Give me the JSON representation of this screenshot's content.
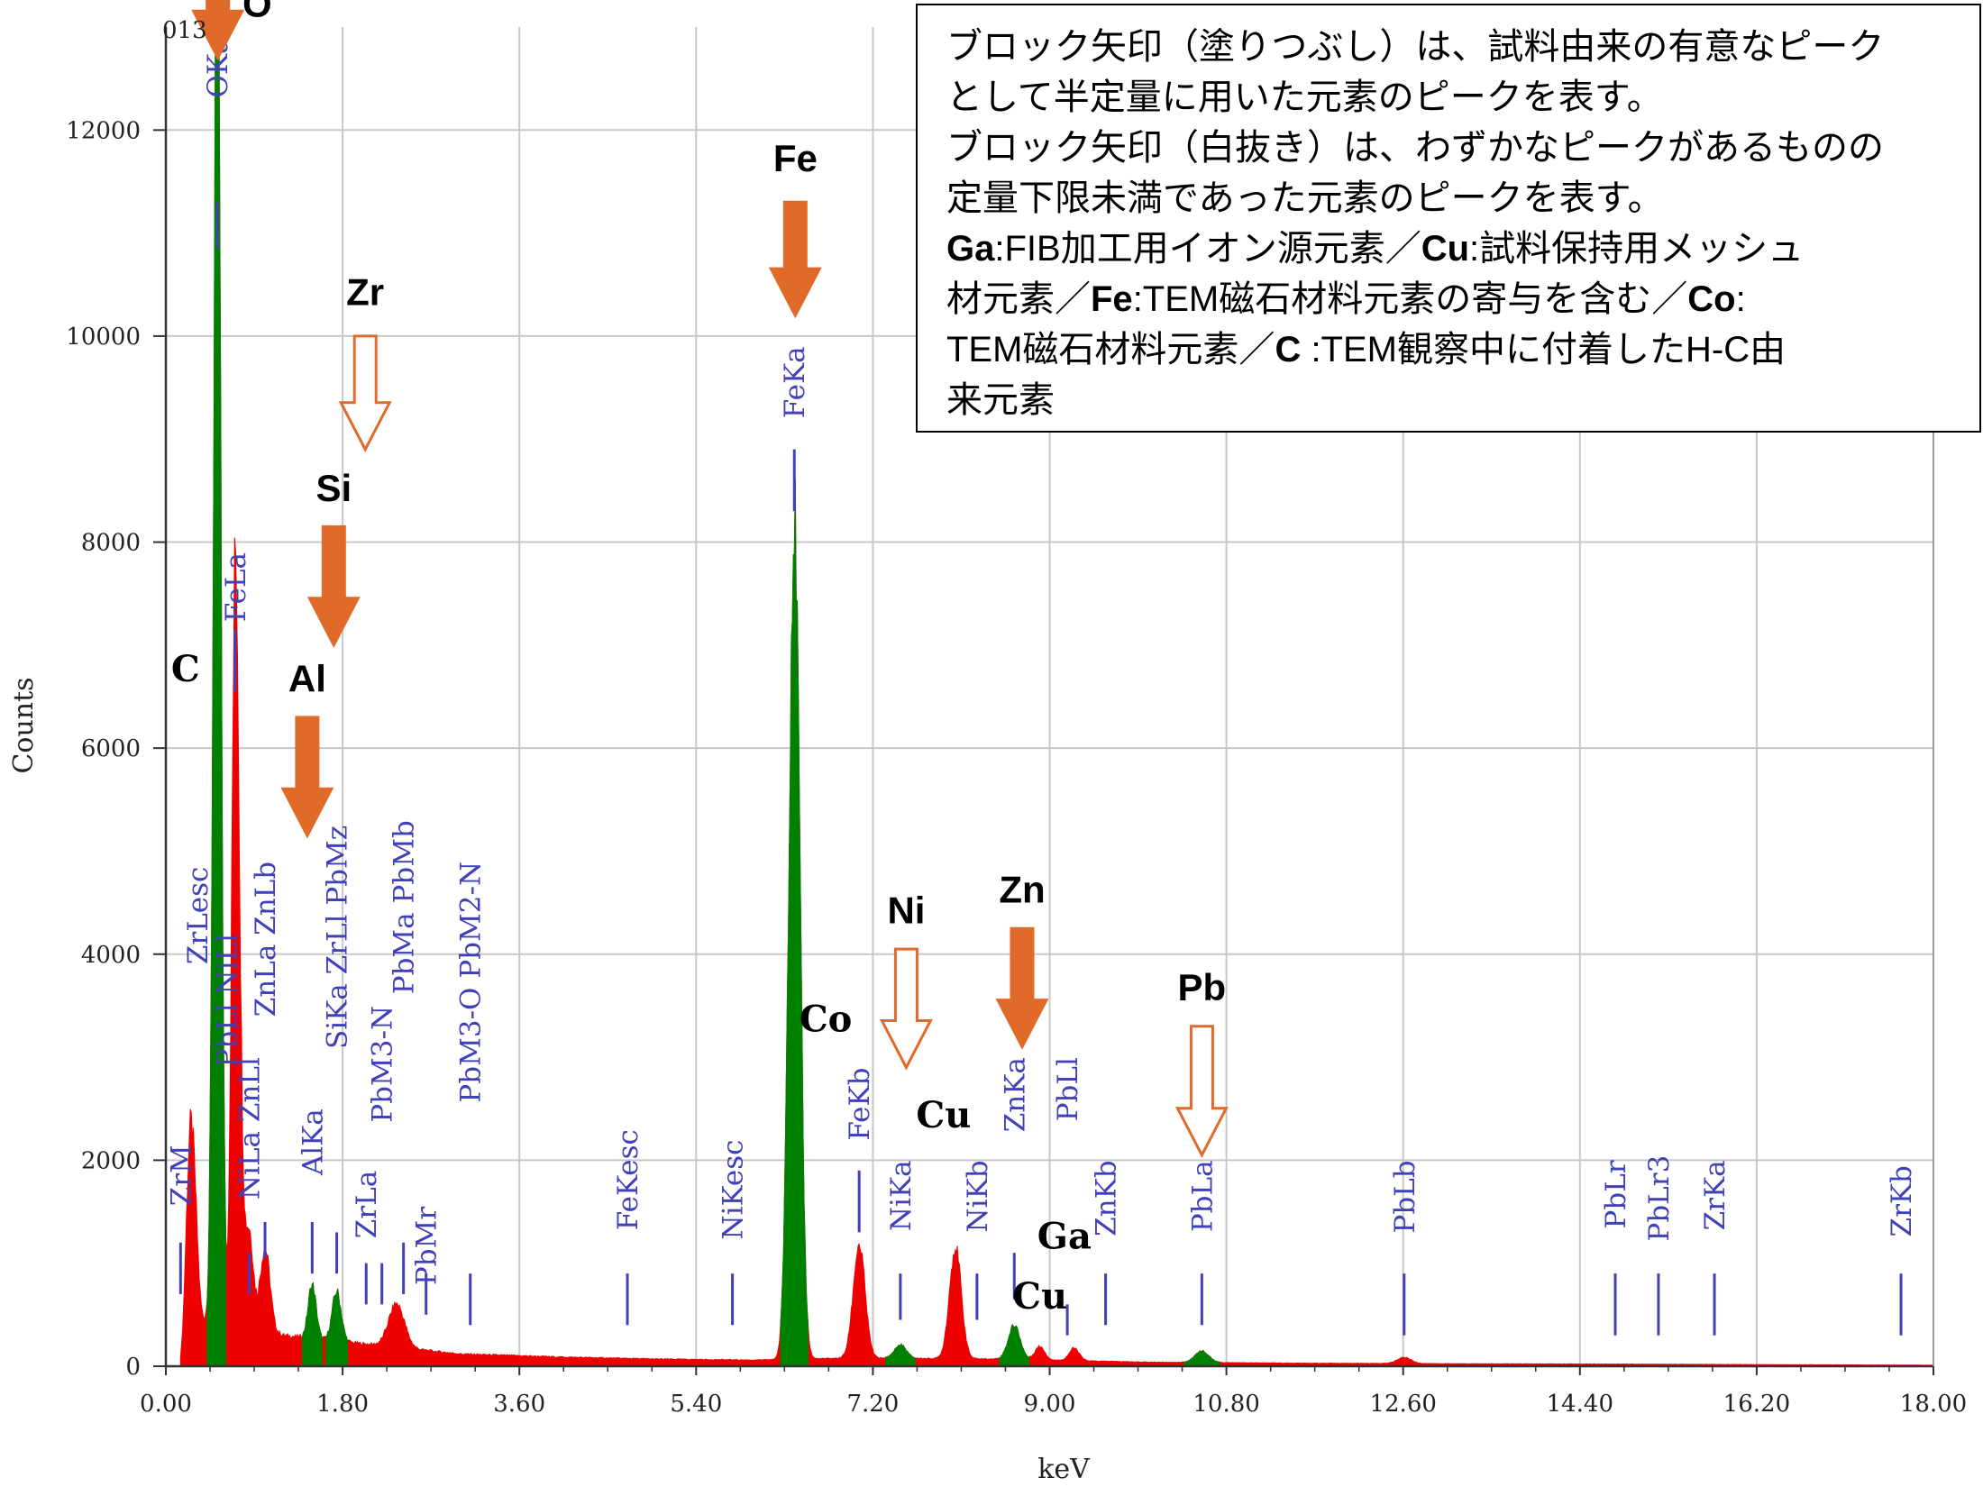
{
  "chart_data": {
    "type": "area",
    "xlabel": "keV",
    "ylabel": "Counts",
    "xlim": [
      0,
      18
    ],
    "ylim": [
      0,
      13000
    ],
    "x_ticks": [
      "0.00",
      "1.80",
      "3.60",
      "5.40",
      "7.20",
      "9.00",
      "10.80",
      "12.60",
      "14.40",
      "16.20",
      "18.00"
    ],
    "y_ticks": [
      "0",
      "2000",
      "4000",
      "6000",
      "8000",
      "10000",
      "12000"
    ],
    "top_label": "013",
    "grid": true,
    "series_colors": {
      "filled": "#ee0000",
      "window": "#008000"
    },
    "background_points": [
      [
        0.15,
        0
      ],
      [
        0.25,
        350
      ],
      [
        0.5,
        500
      ],
      [
        1.2,
        300
      ],
      [
        2.2,
        200
      ],
      [
        3.0,
        120
      ],
      [
        4.0,
        90
      ],
      [
        5.0,
        70
      ],
      [
        6.0,
        60
      ],
      [
        7.0,
        80
      ],
      [
        8.5,
        70
      ],
      [
        10.0,
        40
      ],
      [
        11.5,
        30
      ],
      [
        13.0,
        25
      ],
      [
        15.0,
        20
      ],
      [
        18.0,
        10
      ]
    ],
    "peaks": [
      {
        "center": 0.23,
        "height": 1100,
        "width": 0.035,
        "window": false
      },
      {
        "center": 0.28,
        "height": 1400,
        "width": 0.04,
        "window": false
      },
      {
        "center": 0.51,
        "height": 2100,
        "width": 0.035,
        "window": true
      },
      {
        "center": 0.525,
        "height": 12000,
        "width": 0.035,
        "window": true
      },
      {
        "center": 0.705,
        "height": 6050,
        "width": 0.035,
        "window": false
      },
      {
        "center": 0.74,
        "height": 2000,
        "width": 0.04,
        "window": false
      },
      {
        "center": 0.85,
        "height": 900,
        "width": 0.04,
        "window": false
      },
      {
        "center": 1.01,
        "height": 800,
        "width": 0.05,
        "window": false
      },
      {
        "center": 1.49,
        "height": 520,
        "width": 0.04,
        "window": true
      },
      {
        "center": 1.74,
        "height": 480,
        "width": 0.045,
        "window": true
      },
      {
        "center": 2.35,
        "height": 420,
        "width": 0.08,
        "window": false
      },
      {
        "center": 6.4,
        "height": 8150,
        "width": 0.055,
        "window": true
      },
      {
        "center": 7.06,
        "height": 1100,
        "width": 0.06,
        "window": false
      },
      {
        "center": 7.48,
        "height": 130,
        "width": 0.06,
        "window": true
      },
      {
        "center": 8.04,
        "height": 1080,
        "width": 0.06,
        "window": false
      },
      {
        "center": 8.64,
        "height": 330,
        "width": 0.06,
        "window": true
      },
      {
        "center": 8.9,
        "height": 130,
        "width": 0.05,
        "window": false
      },
      {
        "center": 9.25,
        "height": 120,
        "width": 0.05,
        "window": false
      },
      {
        "center": 10.55,
        "height": 110,
        "width": 0.07,
        "window": true
      },
      {
        "center": 12.61,
        "height": 60,
        "width": 0.07,
        "window": false
      }
    ],
    "peak_markers": [
      {
        "label": "ZrM",
        "x": 0.15,
        "tick_top": 1200,
        "tick_bottom": 700,
        "text_y": 2150
      },
      {
        "label": "ZrLesc",
        "x": 0.32,
        "tick_top": null,
        "tick_bottom": null,
        "text_y": 4850
      },
      {
        "label": "OKa",
        "x": 0.525,
        "tick_top": 11300,
        "tick_bottom": 10850,
        "text_y": 12900
      },
      {
        "label": "PbLl NiLl",
        "x": 0.62,
        "tick_top": null,
        "tick_bottom": null,
        "text_y": 4200
      },
      {
        "label": "FeLa",
        "x": 0.705,
        "tick_top": 7150,
        "tick_bottom": 6550,
        "text_y": 7900
      },
      {
        "label": "NiLa ZnLl",
        "x": 0.85,
        "tick_top": 1100,
        "tick_bottom": 700,
        "text_y": 3000
      },
      {
        "label": "ZnLa ZnLb",
        "x": 1.01,
        "tick_top": 1400,
        "tick_bottom": 1050,
        "text_y": 4900
      },
      {
        "label": "AlKa",
        "x": 1.49,
        "tick_top": 1400,
        "tick_bottom": 900,
        "text_y": 2500
      },
      {
        "label": "SiKa ZrLl PbMz",
        "x": 1.74,
        "tick_top": 1300,
        "tick_bottom": 900,
        "text_y": 5250
      },
      {
        "label": "ZrLa",
        "x": 2.04,
        "tick_top": 1000,
        "tick_bottom": 600,
        "text_y": 1900
      },
      {
        "label": "PbM3-N",
        "x": 2.2,
        "tick_top": 1000,
        "tick_bottom": 600,
        "text_y": 3500
      },
      {
        "label": "PbMr",
        "x": 2.65,
        "tick_top": 900,
        "tick_bottom": 500,
        "text_y": 1550
      },
      {
        "label": "PbMa PbMb",
        "x": 2.42,
        "tick_top": 1200,
        "tick_bottom": 700,
        "text_y": 5300
      },
      {
        "label": "PbM3-O PbM2-N",
        "x": 3.1,
        "tick_top": 900,
        "tick_bottom": 400,
        "text_y": 4900
      },
      {
        "label": "FeKesc",
        "x": 4.7,
        "tick_top": 900,
        "tick_bottom": 400,
        "text_y": 2300
      },
      {
        "label": "NiKesc",
        "x": 5.77,
        "tick_top": 900,
        "tick_bottom": 400,
        "text_y": 2200
      },
      {
        "label": "FeKa",
        "x": 6.4,
        "tick_top": 8900,
        "tick_bottom": 8300,
        "text_y": 9900
      },
      {
        "label": "FeKb",
        "x": 7.06,
        "tick_top": 1900,
        "tick_bottom": 1300,
        "text_y": 2900
      },
      {
        "label": "NiKa",
        "x": 7.48,
        "tick_top": 900,
        "tick_bottom": 450,
        "text_y": 2000
      },
      {
        "label": "NiKb",
        "x": 8.26,
        "tick_top": 900,
        "tick_bottom": 450,
        "text_y": 2000
      },
      {
        "label": "ZnKa",
        "x": 8.64,
        "tick_top": 1100,
        "tick_bottom": 650,
        "text_y": 3000
      },
      {
        "label": "PbLl",
        "x": 9.18,
        "tick_top": 600,
        "tick_bottom": 300,
        "text_y": 3000
      },
      {
        "label": "ZnKb",
        "x": 9.57,
        "tick_top": 900,
        "tick_bottom": 400,
        "text_y": 2000
      },
      {
        "label": "PbLa",
        "x": 10.55,
        "tick_top": 900,
        "tick_bottom": 400,
        "text_y": 2000
      },
      {
        "label": "PbLb",
        "x": 12.61,
        "tick_top": 900,
        "tick_bottom": 300,
        "text_y": 2000
      },
      {
        "label": "PbLr",
        "x": 14.76,
        "tick_top": 900,
        "tick_bottom": 300,
        "text_y": 2000
      },
      {
        "label": "PbLr3",
        "x": 15.2,
        "tick_top": 900,
        "tick_bottom": 300,
        "text_y": 2050
      },
      {
        "label": "ZrKa",
        "x": 15.77,
        "tick_top": 900,
        "tick_bottom": 300,
        "text_y": 2000
      },
      {
        "label": "ZrKb",
        "x": 17.67,
        "tick_top": 900,
        "tick_bottom": 300,
        "text_y": 1950
      }
    ],
    "element_arrows": [
      {
        "element": "O",
        "x": 0.53,
        "head_y": 12700,
        "tail_y": 13800,
        "filled": true,
        "label_x": 0.93,
        "label_y": 13100
      },
      {
        "element": "Zr",
        "x": 2.03,
        "head_y": 8900,
        "tail_y": 10000,
        "filled": false,
        "label_x": 2.03,
        "label_y": 10300
      },
      {
        "element": "Si",
        "x": 1.71,
        "head_y": 7000,
        "tail_y": 8150,
        "filled": true,
        "label_x": 1.71,
        "label_y": 8400
      },
      {
        "element": "Al",
        "x": 1.44,
        "head_y": 5150,
        "tail_y": 6300,
        "filled": true,
        "label_x": 1.44,
        "label_y": 6550
      },
      {
        "element": "Fe",
        "x": 6.41,
        "head_y": 10200,
        "tail_y": 11300,
        "filled": true,
        "label_x": 6.41,
        "label_y": 11600
      },
      {
        "element": "Ni",
        "x": 7.54,
        "head_y": 2900,
        "tail_y": 4050,
        "filled": false,
        "label_x": 7.54,
        "label_y": 4300
      },
      {
        "element": "Zn",
        "x": 8.72,
        "head_y": 3100,
        "tail_y": 4250,
        "filled": true,
        "label_x": 8.72,
        "label_y": 4500
      },
      {
        "element": "Pb",
        "x": 10.55,
        "head_y": 2050,
        "tail_y": 3300,
        "filled": false,
        "label_x": 10.55,
        "label_y": 3550
      }
    ],
    "element_labels": [
      {
        "text": "C",
        "x": 0.2,
        "y": 6650
      },
      {
        "text": "Co",
        "x": 6.72,
        "y": 3250
      },
      {
        "text": "Cu",
        "x": 7.92,
        "y": 2320
      },
      {
        "text": "Ga",
        "x": 9.15,
        "y": 1140
      },
      {
        "text": "Cu",
        "x": 8.9,
        "y": 560
      }
    ],
    "arrow_color": "#e06a2a"
  },
  "note": {
    "line1": "ブロック矢印（塗りつぶし）は、試料由来の有意なピーク",
    "line2": "として半定量に用いた元素のピークを表す。",
    "line3": "ブロック矢印（白抜き）は、わずかなピークがあるものの",
    "line4": "定量下限未満であった元素のピークを表す。",
    "ga_bold": "Ga",
    "ga_text": ":FIB加工用イオン源元素／",
    "cu_bold": "Cu",
    "cu_text": ":試料保持用メッシュ",
    "line6_text": "材元素／",
    "fe_bold": "Fe",
    "fe_text": ":TEM磁石材料元素の寄与を含む／",
    "co_bold": "Co",
    "co_text": ":",
    "line7_text": "TEM磁石材料元素／",
    "c_bold": "C",
    "c_text": " :TEM観察中に付着したH-C由",
    "line8": "来元素"
  }
}
